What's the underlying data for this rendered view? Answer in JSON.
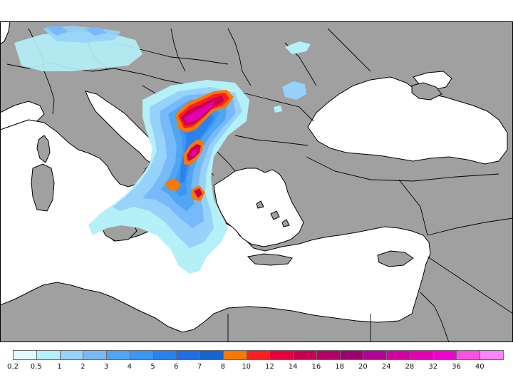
{
  "map": {
    "land_color": "#a0a0a0",
    "sea_color": "#ffffff",
    "border_color": "#000000",
    "regions_shown": [
      "Adriatic Sea",
      "Balkans",
      "Black Sea",
      "Aegean Sea",
      "Eastern Mediterranean"
    ]
  },
  "legend": {
    "colors": [
      "#e0fbff",
      "#b4f0f8",
      "#96d2fa",
      "#78b9fa",
      "#50a5f5",
      "#3c96f5",
      "#2882f0",
      "#1e6ee6",
      "#1464d2",
      "#fa7800",
      "#ff1e1e",
      "#e6003c",
      "#c80050",
      "#b40064",
      "#a0006e",
      "#b40096",
      "#d200a0",
      "#e600b4",
      "#f000d2",
      "#fa50e6",
      "#ff82ff"
    ],
    "labels": [
      "0.2",
      "0.5",
      "1",
      "2",
      "3",
      "4",
      "5",
      "6",
      "7",
      "8",
      "10",
      "12",
      "14",
      "16",
      "18",
      "20",
      "24",
      "28",
      "32",
      "36",
      "40"
    ]
  }
}
